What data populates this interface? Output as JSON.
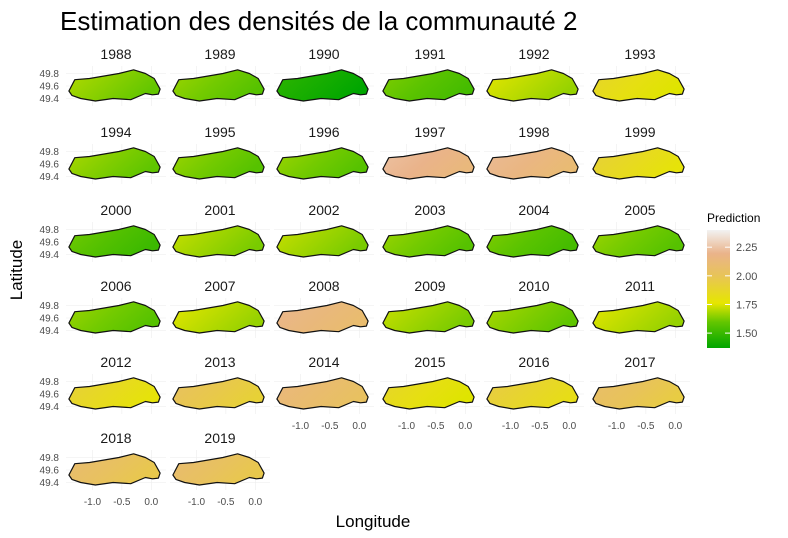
{
  "chart_data": {
    "type": "heatmap",
    "title": "Estimation des densités de la communauté 2",
    "xlabel": "Longitude",
    "ylabel": "Latitude",
    "x_ticks": [
      "-1.0",
      "-0.5",
      "0.0"
    ],
    "y_ticks": [
      "49.8",
      "49.6",
      "49.4"
    ],
    "legend": {
      "title": "Prediction",
      "ticks": [
        "2.25",
        "2.00",
        "1.75",
        "1.50"
      ],
      "tick_values": [
        2.25,
        2.0,
        1.75,
        1.5
      ],
      "range": [
        1.37,
        2.4
      ],
      "colors": [
        "#00A600",
        "#E6E600",
        "#EAB38A",
        "#F2F2F2"
      ],
      "placement": "right"
    },
    "facets": [
      {
        "year": "1988",
        "value": 1.65
      },
      {
        "year": "1989",
        "value": 1.62
      },
      {
        "year": "1990",
        "value": 1.42
      },
      {
        "year": "1991",
        "value": 1.58
      },
      {
        "year": "1992",
        "value": 1.72
      },
      {
        "year": "1993",
        "value": 1.82
      },
      {
        "year": "1994",
        "value": 1.64
      },
      {
        "year": "1995",
        "value": 1.62
      },
      {
        "year": "1996",
        "value": 1.62
      },
      {
        "year": "1997",
        "value": 2.15
      },
      {
        "year": "1998",
        "value": 2.12
      },
      {
        "year": "1999",
        "value": 1.85
      },
      {
        "year": "2000",
        "value": 1.56
      },
      {
        "year": "2001",
        "value": 1.68
      },
      {
        "year": "2002",
        "value": 1.68
      },
      {
        "year": "2003",
        "value": 1.62
      },
      {
        "year": "2004",
        "value": 1.58
      },
      {
        "year": "2005",
        "value": 1.62
      },
      {
        "year": "2006",
        "value": 1.62
      },
      {
        "year": "2007",
        "value": 1.72
      },
      {
        "year": "2008",
        "value": 2.1
      },
      {
        "year": "2009",
        "value": 1.68
      },
      {
        "year": "2010",
        "value": 1.64
      },
      {
        "year": "2011",
        "value": 1.72
      },
      {
        "year": "2012",
        "value": 1.85
      },
      {
        "year": "2013",
        "value": 1.95
      },
      {
        "year": "2014",
        "value": 2.05
      },
      {
        "year": "2015",
        "value": 1.82
      },
      {
        "year": "2016",
        "value": 1.88
      },
      {
        "year": "2017",
        "value": 1.98
      },
      {
        "year": "2018",
        "value": 2.0
      },
      {
        "year": "2019",
        "value": 2.0
      }
    ]
  }
}
